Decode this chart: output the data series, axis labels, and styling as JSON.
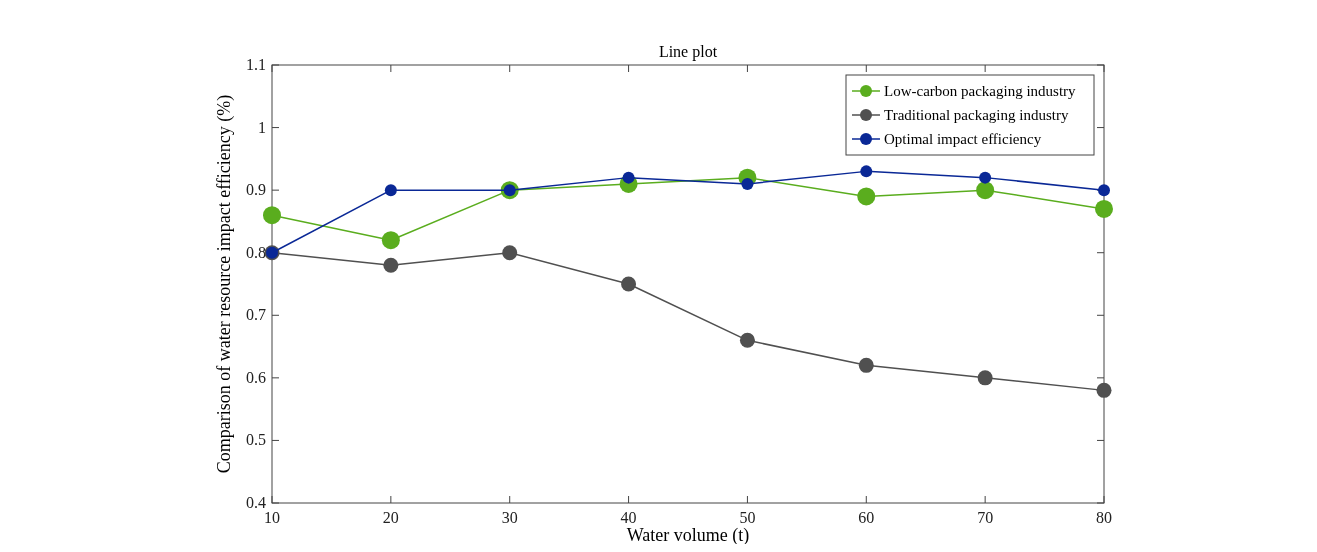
{
  "chart_data": {
    "type": "line",
    "title": "Line plot",
    "xlabel": "Water volume (t)",
    "ylabel": "Comparison of water resource impact efficiency (%)",
    "x": [
      10,
      20,
      30,
      40,
      50,
      60,
      70,
      80
    ],
    "series": [
      {
        "name": "Low-carbon packaging industry",
        "color": "#5aad1e",
        "values": [
          0.86,
          0.82,
          0.9,
          0.91,
          0.92,
          0.89,
          0.9,
          0.87
        ]
      },
      {
        "name": "Traditional packaging industry",
        "color": "#505050",
        "values": [
          0.8,
          0.78,
          0.8,
          0.75,
          0.66,
          0.62,
          0.6,
          0.58
        ]
      },
      {
        "name": "Optimal impact efficiency",
        "color": "#0a2896",
        "values": [
          0.8,
          0.9,
          0.9,
          0.92,
          0.91,
          0.93,
          0.92,
          0.9
        ]
      }
    ],
    "xlim": [
      10,
      80
    ],
    "xticks": [
      10,
      20,
      30,
      40,
      50,
      60,
      70,
      80
    ],
    "ylim": [
      0.4,
      1.1
    ],
    "yticks": [
      0.4,
      0.5,
      0.6,
      0.7,
      0.8,
      0.9,
      1,
      1.1
    ],
    "grid": false,
    "legend": "top right",
    "marker": "circle",
    "line_style": "solid"
  }
}
